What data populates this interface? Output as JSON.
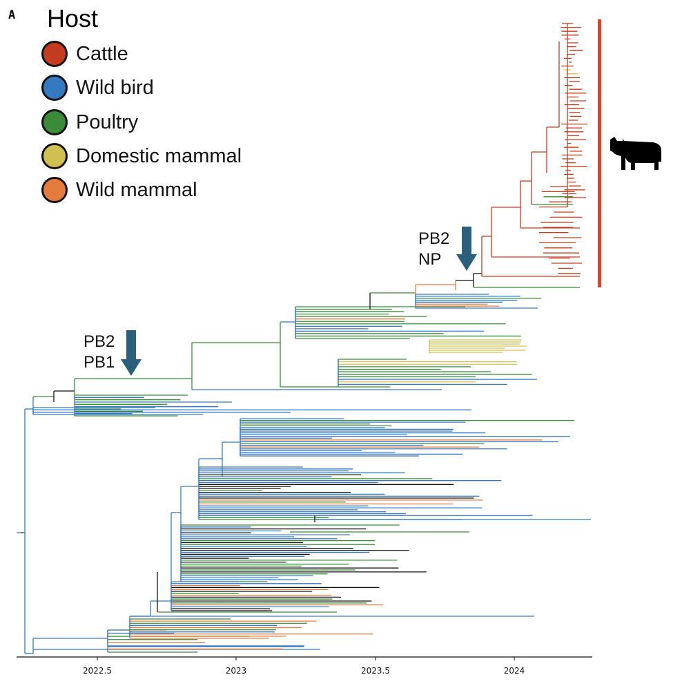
{
  "panel_label": "A",
  "legend": {
    "title": "Host",
    "items": [
      {
        "label": "Cattle",
        "color": "#c43c1f"
      },
      {
        "label": "Wild bird",
        "color": "#3579c0"
      },
      {
        "label": "Poultry",
        "color": "#3a8a3a"
      },
      {
        "label": "Domestic mammal",
        "color": "#cfc050"
      },
      {
        "label": "Wild mammal",
        "color": "#e57b3c"
      }
    ]
  },
  "annotations": {
    "upper": {
      "line1": "PB2",
      "line2": "NP",
      "color": "#2b607a"
    },
    "lower": {
      "line1": "PB2",
      "line2": "PB1",
      "color": "#2b607a"
    }
  },
  "cattle_bar": {
    "color": "#d8472a",
    "icon": "cow-icon"
  },
  "axis": {
    "ticks": [
      "2022.5",
      "2023",
      "2023.5",
      "2024"
    ]
  },
  "colors": {
    "ancestral": "#111111"
  }
}
